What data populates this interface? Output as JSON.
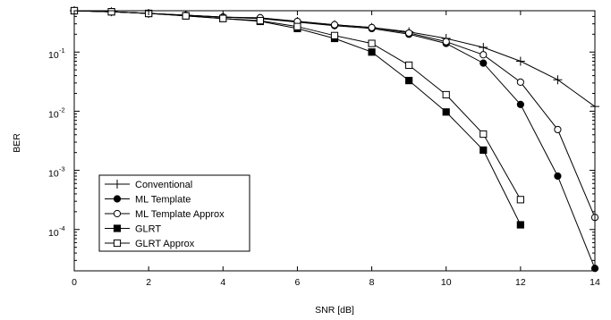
{
  "chart_data": {
    "type": "line",
    "xlabel": "SNR [dB]",
    "ylabel": "BER",
    "xlim": [
      0,
      14
    ],
    "ylim": [
      2e-05,
      0.5
    ],
    "yscale": "log",
    "grid": false,
    "legend_position": "bottom-left",
    "x_ticks": [
      0,
      2,
      4,
      6,
      8,
      10,
      12,
      14
    ],
    "y_ticks": [
      {
        "value": 0.1,
        "base": "10",
        "exp": "-1"
      },
      {
        "value": 0.01,
        "base": "10",
        "exp": "-2"
      },
      {
        "value": 0.001,
        "base": "10",
        "exp": "-3"
      },
      {
        "value": 0.0001,
        "base": "10",
        "exp": "-4"
      }
    ],
    "series": [
      {
        "name": "Conventional",
        "marker": "plus",
        "x": [
          0,
          1,
          2,
          3,
          4,
          5,
          6,
          7,
          8,
          9,
          10,
          11,
          12,
          13,
          14
        ],
        "y": [
          0.5,
          0.48,
          0.45,
          0.42,
          0.39,
          0.37,
          0.33,
          0.29,
          0.26,
          0.22,
          0.17,
          0.12,
          0.07,
          0.034,
          0.012
        ]
      },
      {
        "name": "ML Template",
        "marker": "filled-circle",
        "x": [
          0,
          1,
          2,
          3,
          4,
          5,
          6,
          7,
          8,
          9,
          10,
          11,
          12,
          13,
          14
        ],
        "y": [
          0.5,
          0.48,
          0.45,
          0.42,
          0.39,
          0.37,
          0.32,
          0.28,
          0.25,
          0.2,
          0.14,
          0.065,
          0.013,
          0.0008,
          2.2e-05
        ]
      },
      {
        "name": "ML Template Approx",
        "marker": "open-circle",
        "x": [
          0,
          1,
          2,
          3,
          4,
          5,
          6,
          7,
          8,
          9,
          10,
          11,
          12,
          13,
          14
        ],
        "y": [
          0.5,
          0.48,
          0.45,
          0.42,
          0.39,
          0.38,
          0.33,
          0.29,
          0.26,
          0.21,
          0.15,
          0.09,
          0.031,
          0.0049,
          0.00016
        ]
      },
      {
        "name": "GLRT",
        "marker": "filled-square",
        "x": [
          0,
          1,
          2,
          3,
          4,
          5,
          6,
          7,
          8,
          9,
          10,
          11,
          12
        ],
        "y": [
          0.5,
          0.48,
          0.45,
          0.41,
          0.37,
          0.33,
          0.25,
          0.17,
          0.1,
          0.033,
          0.0097,
          0.0022,
          0.00012
        ]
      },
      {
        "name": "GLRT Approx",
        "marker": "open-square",
        "x": [
          0,
          1,
          2,
          3,
          4,
          5,
          6,
          7,
          8,
          9,
          10,
          11,
          12
        ],
        "y": [
          0.5,
          0.48,
          0.45,
          0.41,
          0.37,
          0.34,
          0.27,
          0.19,
          0.14,
          0.06,
          0.019,
          0.0041,
          0.00032
        ]
      }
    ]
  }
}
